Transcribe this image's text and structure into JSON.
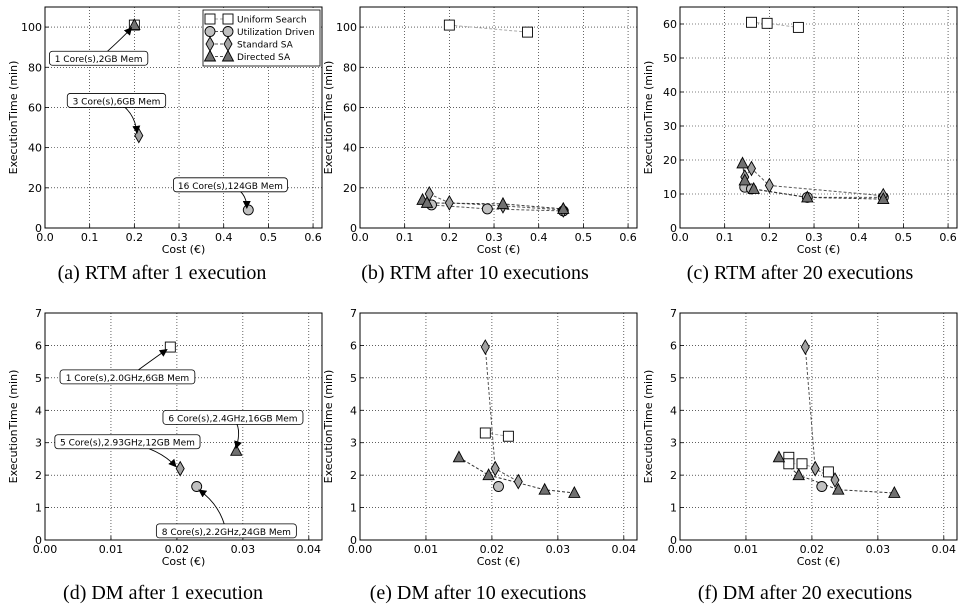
{
  "legend": {
    "entries": [
      {
        "label": "Uniform Search",
        "marker": "square",
        "color": "#ffffff"
      },
      {
        "label": "Utilization Driven",
        "marker": "circle",
        "color": "#c0c0c0"
      },
      {
        "label": "Standard SA",
        "marker": "diamond",
        "color": "#a0a0a0"
      },
      {
        "label": "Directed SA",
        "marker": "triangle",
        "color": "#707070"
      }
    ]
  },
  "chart_data": [
    {
      "id": "a",
      "type": "scatter",
      "caption": "(a) RTM after 1 execution",
      "xlabel": "Cost (€)",
      "ylabel": "ExecutionTime (min)",
      "xlim": [
        0.0,
        0.62
      ],
      "ylim": [
        0,
        110
      ],
      "xticks": [
        0.0,
        0.1,
        0.2,
        0.3,
        0.4,
        0.5,
        0.6
      ],
      "xtick_labels": [
        "0.0",
        "0.1",
        "0.2",
        "0.3",
        "0.4",
        "0.5",
        "0.6"
      ],
      "yticks": [
        0,
        20,
        40,
        60,
        80,
        100
      ],
      "ytick_labels": [
        "0",
        "20",
        "40",
        "60",
        "80",
        "100"
      ],
      "grid": true,
      "legend": "top-right",
      "series": [
        {
          "name": "Uniform Search",
          "marker": "square",
          "points": [
            [
              0.2,
              101
            ]
          ]
        },
        {
          "name": "Utilization Driven",
          "marker": "circle",
          "points": [
            [
              0.455,
              9
            ]
          ]
        },
        {
          "name": "Standard SA",
          "marker": "diamond",
          "points": [
            [
              0.21,
              46
            ]
          ]
        },
        {
          "name": "Directed SA",
          "marker": "triangle",
          "points": [
            [
              0.2,
              101
            ]
          ]
        }
      ],
      "annotations": [
        {
          "text": "1 Core(s),2GB Mem",
          "point": [
            0.2,
            101
          ],
          "tx": 0.12,
          "ty": 84
        },
        {
          "text": "3 Core(s),6GB Mem",
          "point": [
            0.21,
            46
          ],
          "tx": 0.16,
          "ty": 63
        },
        {
          "text": "16 Core(s),124GB Mem",
          "point": [
            0.455,
            9
          ],
          "tx": 0.415,
          "ty": 21
        }
      ]
    },
    {
      "id": "b",
      "type": "scatter",
      "caption": "(b) RTM after 10 executions",
      "xlabel": "Cost (€)",
      "ylabel": "ExecutionTime (min)",
      "xlim": [
        0.0,
        0.62
      ],
      "ylim": [
        0,
        110
      ],
      "xticks": [
        0.0,
        0.1,
        0.2,
        0.3,
        0.4,
        0.5,
        0.6
      ],
      "xtick_labels": [
        "0.0",
        "0.1",
        "0.2",
        "0.3",
        "0.4",
        "0.5",
        "0.6"
      ],
      "yticks": [
        0,
        20,
        40,
        60,
        80,
        100
      ],
      "ytick_labels": [
        "0",
        "20",
        "40",
        "60",
        "80",
        "100"
      ],
      "grid": true,
      "series": [
        {
          "name": "Uniform Search",
          "marker": "square",
          "points": [
            [
              0.2,
              101
            ],
            [
              0.375,
              97.5
            ]
          ]
        },
        {
          "name": "Utilization Driven",
          "marker": "circle",
          "points": [
            [
              0.16,
              11.5
            ],
            [
              0.285,
              9.5
            ],
            [
              0.455,
              8.5
            ]
          ]
        },
        {
          "name": "Standard SA",
          "marker": "diamond",
          "points": [
            [
              0.155,
              17
            ],
            [
              0.2,
              12.5
            ],
            [
              0.32,
              11
            ],
            [
              0.455,
              9
            ]
          ]
        },
        {
          "name": "Directed SA",
          "marker": "triangle",
          "points": [
            [
              0.14,
              14
            ],
            [
              0.15,
              12.5
            ],
            [
              0.32,
              12
            ],
            [
              0.455,
              9.5
            ]
          ]
        }
      ],
      "annotations": []
    },
    {
      "id": "c",
      "type": "scatter",
      "caption": "(c) RTM after 20 executions",
      "xlabel": "Cost (€)",
      "ylabel": "ExecutionTime (min)",
      "xlim": [
        0.0,
        0.62
      ],
      "ylim": [
        0,
        65
      ],
      "xticks": [
        0.0,
        0.1,
        0.2,
        0.3,
        0.4,
        0.5,
        0.6
      ],
      "xtick_labels": [
        "0.0",
        "0.1",
        "0.2",
        "0.3",
        "0.4",
        "0.5",
        "0.6"
      ],
      "yticks": [
        0,
        10,
        20,
        30,
        40,
        50,
        60
      ],
      "ytick_labels": [
        "0",
        "10",
        "20",
        "30",
        "40",
        "50",
        "60"
      ],
      "grid": true,
      "series": [
        {
          "name": "Uniform Search",
          "marker": "square",
          "points": [
            [
              0.16,
              60.5
            ],
            [
              0.195,
              60.2
            ],
            [
              0.265,
              59
            ]
          ]
        },
        {
          "name": "Utilization Driven",
          "marker": "circle",
          "points": [
            [
              0.145,
              12
            ],
            [
              0.16,
              11.5
            ],
            [
              0.285,
              9
            ],
            [
              0.455,
              9
            ]
          ]
        },
        {
          "name": "Standard SA",
          "marker": "diamond",
          "points": [
            [
              0.145,
              15
            ],
            [
              0.16,
              17.5
            ],
            [
              0.2,
              12.5
            ],
            [
              0.455,
              9.5
            ]
          ]
        },
        {
          "name": "Directed SA",
          "marker": "triangle",
          "points": [
            [
              0.14,
              19
            ],
            [
              0.145,
              14
            ],
            [
              0.165,
              11.5
            ],
            [
              0.285,
              9
            ],
            [
              0.455,
              8.5
            ]
          ]
        }
      ],
      "annotations": []
    },
    {
      "id": "d",
      "type": "scatter",
      "caption": "(d) DM after 1 execution",
      "xlabel": "Cost (€)",
      "ylabel": "ExecutionTime (min)",
      "xlim": [
        0.0,
        0.042
      ],
      "ylim": [
        0,
        7
      ],
      "xticks": [
        0.0,
        0.01,
        0.02,
        0.03,
        0.04
      ],
      "xtick_labels": [
        "0.00",
        "0.01",
        "0.02",
        "0.03",
        "0.04"
      ],
      "yticks": [
        0,
        1,
        2,
        3,
        4,
        5,
        6,
        7
      ],
      "ytick_labels": [
        "0",
        "1",
        "2",
        "3",
        "4",
        "5",
        "6",
        "7"
      ],
      "grid": true,
      "series": [
        {
          "name": "Uniform Search",
          "marker": "square",
          "points": [
            [
              0.019,
              5.95
            ]
          ]
        },
        {
          "name": "Utilization Driven",
          "marker": "circle",
          "points": [
            [
              0.023,
              1.65
            ]
          ]
        },
        {
          "name": "Standard SA",
          "marker": "diamond",
          "points": [
            [
              0.0205,
              2.2
            ]
          ]
        },
        {
          "name": "Directed SA",
          "marker": "triangle",
          "points": [
            [
              0.029,
              2.75
            ]
          ]
        }
      ],
      "annotations": [
        {
          "text": "1 Core(s),2.0GHz,6GB Mem",
          "point": [
            0.019,
            5.95
          ],
          "tx": 0.0125,
          "ty": 5.0
        },
        {
          "text": "6 Core(s),2.4GHz,16GB Mem",
          "point": [
            0.029,
            2.75
          ],
          "tx": 0.0285,
          "ty": 3.75
        },
        {
          "text": "5 Core(s),2.93GHz,12GB Mem",
          "point": [
            0.0205,
            2.2
          ],
          "tx": 0.0125,
          "ty": 3.0
        },
        {
          "text": "8 Core(s),2.2GHz,24GB Mem",
          "point": [
            0.023,
            1.65
          ],
          "tx": 0.0275,
          "ty": 0.25
        }
      ]
    },
    {
      "id": "e",
      "type": "scatter",
      "caption": "(e) DM after 10 executions",
      "xlabel": "Cost (€)",
      "ylabel": "ExecutionTime (min)",
      "xlim": [
        0.0,
        0.042
      ],
      "ylim": [
        0,
        7
      ],
      "xticks": [
        0.0,
        0.01,
        0.02,
        0.03,
        0.04
      ],
      "xtick_labels": [
        "0.00",
        "0.01",
        "0.02",
        "0.03",
        "0.04"
      ],
      "yticks": [
        0,
        1,
        2,
        3,
        4,
        5,
        6,
        7
      ],
      "ytick_labels": [
        "0",
        "1",
        "2",
        "3",
        "4",
        "5",
        "6",
        "7"
      ],
      "grid": true,
      "series": [
        {
          "name": "Uniform Search",
          "marker": "square",
          "points": [
            [
              0.019,
              3.3
            ],
            [
              0.0225,
              3.2
            ]
          ]
        },
        {
          "name": "Utilization Driven",
          "marker": "circle",
          "points": [
            [
              0.021,
              1.65
            ]
          ]
        },
        {
          "name": "Standard SA",
          "marker": "diamond",
          "points": [
            [
              0.019,
              5.95
            ],
            [
              0.0205,
              2.2
            ],
            [
              0.024,
              1.8
            ]
          ]
        },
        {
          "name": "Directed SA",
          "marker": "triangle",
          "points": [
            [
              0.015,
              2.55
            ],
            [
              0.0195,
              2.0
            ],
            [
              0.028,
              1.55
            ],
            [
              0.0325,
              1.45
            ]
          ]
        }
      ],
      "annotations": []
    },
    {
      "id": "f",
      "type": "scatter",
      "caption": "(f) DM after 20 executions",
      "xlabel": "Cost (€)",
      "ylabel": "ExecutionTime (min)",
      "xlim": [
        0.0,
        0.042
      ],
      "ylim": [
        0,
        7
      ],
      "xticks": [
        0.0,
        0.01,
        0.02,
        0.03,
        0.04
      ],
      "xtick_labels": [
        "0.00",
        "0.01",
        "0.02",
        "0.03",
        "0.04"
      ],
      "yticks": [
        0,
        1,
        2,
        3,
        4,
        5,
        6,
        7
      ],
      "ytick_labels": [
        "0",
        "1",
        "2",
        "3",
        "4",
        "5",
        "6",
        "7"
      ],
      "grid": true,
      "series": [
        {
          "name": "Uniform Search",
          "marker": "square",
          "points": [
            [
              0.0165,
              2.55
            ],
            [
              0.0165,
              2.35
            ],
            [
              0.0185,
              2.35
            ],
            [
              0.0225,
              2.1
            ]
          ]
        },
        {
          "name": "Utilization Driven",
          "marker": "circle",
          "points": [
            [
              0.0215,
              1.65
            ]
          ]
        },
        {
          "name": "Standard SA",
          "marker": "diamond",
          "points": [
            [
              0.019,
              5.95
            ],
            [
              0.0205,
              2.2
            ],
            [
              0.0235,
              1.85
            ]
          ]
        },
        {
          "name": "Directed SA",
          "marker": "triangle",
          "points": [
            [
              0.015,
              2.55
            ],
            [
              0.018,
              2.0
            ],
            [
              0.024,
              1.55
            ],
            [
              0.0325,
              1.45
            ]
          ]
        }
      ],
      "annotations": []
    }
  ]
}
